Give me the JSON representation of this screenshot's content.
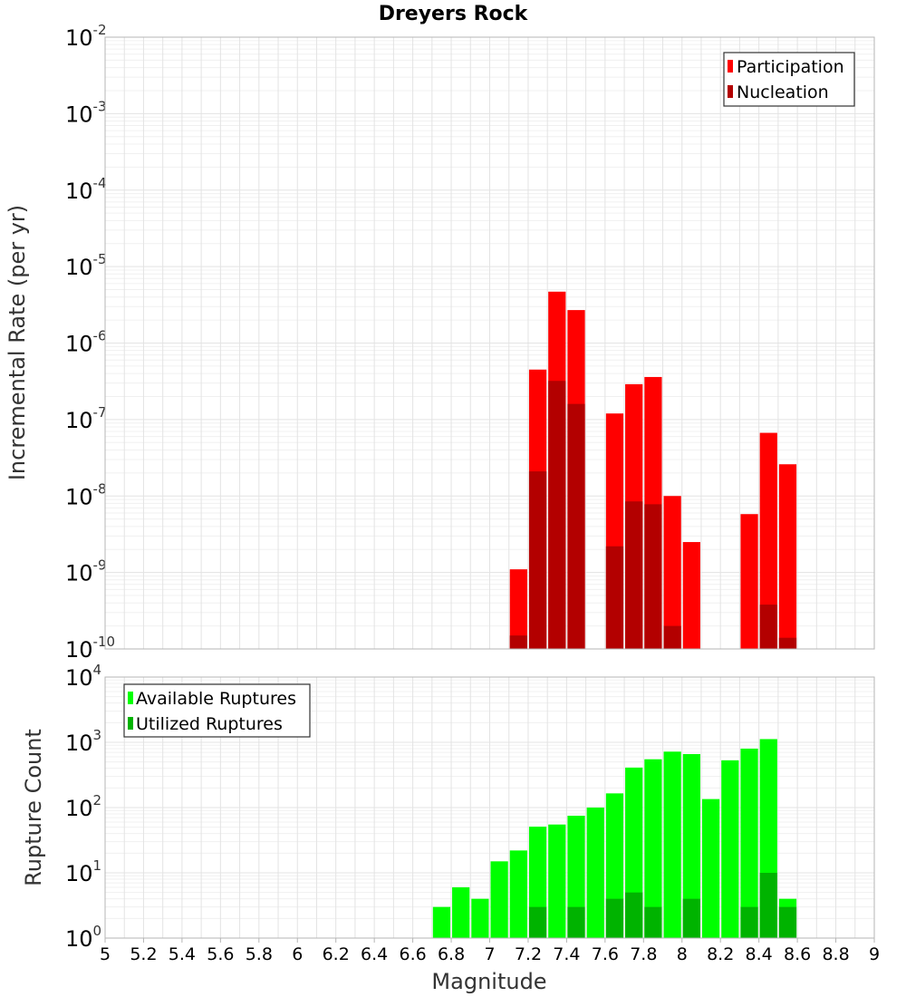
{
  "chart_data": [
    {
      "type": "bar",
      "title": "Dreyers Rock",
      "ylabel": "Incremental Rate (per yr)",
      "xlabel": "",
      "yscale": "log",
      "ylim_exp": [
        -10,
        -2
      ],
      "xlim": [
        5,
        9
      ],
      "grid": true,
      "legend_position": "top-right",
      "bin_width": 0.1,
      "series": [
        {
          "name": "Participation",
          "color": "#ff0000",
          "points": [
            {
              "x": 7.15,
              "y": 1.1e-09
            },
            {
              "x": 7.25,
              "y": 4.5e-07
            },
            {
              "x": 7.35,
              "y": 4.7e-06
            },
            {
              "x": 7.45,
              "y": 2.7e-06
            },
            {
              "x": 7.65,
              "y": 1.2e-07
            },
            {
              "x": 7.75,
              "y": 2.9e-07
            },
            {
              "x": 7.85,
              "y": 3.6e-07
            },
            {
              "x": 7.95,
              "y": 1e-08
            },
            {
              "x": 8.05,
              "y": 2.5e-09
            },
            {
              "x": 8.35,
              "y": 5.8e-09
            },
            {
              "x": 8.45,
              "y": 6.7e-08
            },
            {
              "x": 8.55,
              "y": 2.6e-08
            }
          ]
        },
        {
          "name": "Nucleation",
          "color": "#b30000",
          "points": [
            {
              "x": 7.15,
              "y": 1.5e-10
            },
            {
              "x": 7.25,
              "y": 2.1e-08
            },
            {
              "x": 7.35,
              "y": 3.2e-07
            },
            {
              "x": 7.45,
              "y": 1.6e-07
            },
            {
              "x": 7.65,
              "y": 2.2e-09
            },
            {
              "x": 7.75,
              "y": 8.5e-09
            },
            {
              "x": 7.85,
              "y": 7.8e-09
            },
            {
              "x": 7.95,
              "y": 2e-10
            },
            {
              "x": 8.45,
              "y": 3.8e-10
            },
            {
              "x": 8.55,
              "y": 1.4e-10
            }
          ]
        }
      ]
    },
    {
      "type": "bar",
      "ylabel": "Rupture Count",
      "xlabel": "Magnitude",
      "yscale": "log",
      "ylim_exp": [
        0,
        4
      ],
      "xlim": [
        5,
        9
      ],
      "x_ticks": [
        "5",
        "5.2",
        "5.4",
        "5.6",
        "5.8",
        "6",
        "6.2",
        "6.4",
        "6.6",
        "6.8",
        "7",
        "7.2",
        "7.4",
        "7.6",
        "7.8",
        "8",
        "8.2",
        "8.4",
        "8.6",
        "8.8",
        "9"
      ],
      "grid": true,
      "legend_position": "top-left",
      "bin_width": 0.1,
      "series": [
        {
          "name": "Available Ruptures",
          "color": "#00ff00",
          "points": [
            {
              "x": 6.25,
              "y": 1
            },
            {
              "x": 6.55,
              "y": 1
            },
            {
              "x": 6.65,
              "y": 1
            },
            {
              "x": 6.75,
              "y": 3
            },
            {
              "x": 6.85,
              "y": 6
            },
            {
              "x": 6.95,
              "y": 4
            },
            {
              "x": 7.05,
              "y": 15
            },
            {
              "x": 7.15,
              "y": 22
            },
            {
              "x": 7.25,
              "y": 51
            },
            {
              "x": 7.35,
              "y": 55
            },
            {
              "x": 7.45,
              "y": 75
            },
            {
              "x": 7.55,
              "y": 100
            },
            {
              "x": 7.65,
              "y": 165
            },
            {
              "x": 7.75,
              "y": 410
            },
            {
              "x": 7.85,
              "y": 550
            },
            {
              "x": 7.95,
              "y": 720
            },
            {
              "x": 8.05,
              "y": 660
            },
            {
              "x": 8.15,
              "y": 135
            },
            {
              "x": 8.25,
              "y": 530
            },
            {
              "x": 8.35,
              "y": 800
            },
            {
              "x": 8.45,
              "y": 1120
            },
            {
              "x": 8.55,
              "y": 4
            }
          ]
        },
        {
          "name": "Utilized Ruptures",
          "color": "#00b300",
          "points": [
            {
              "x": 7.15,
              "y": 1
            },
            {
              "x": 7.25,
              "y": 3
            },
            {
              "x": 7.35,
              "y": 1
            },
            {
              "x": 7.45,
              "y": 3
            },
            {
              "x": 7.55,
              "y": 1
            },
            {
              "x": 7.65,
              "y": 4
            },
            {
              "x": 7.75,
              "y": 5
            },
            {
              "x": 7.85,
              "y": 3
            },
            {
              "x": 7.95,
              "y": 1
            },
            {
              "x": 8.05,
              "y": 4
            },
            {
              "x": 8.35,
              "y": 3
            },
            {
              "x": 8.45,
              "y": 10
            },
            {
              "x": 8.55,
              "y": 3
            }
          ]
        }
      ]
    }
  ]
}
